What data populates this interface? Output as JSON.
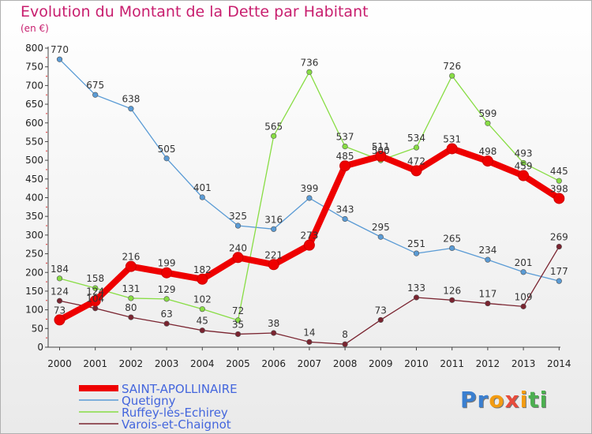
{
  "header": {
    "title": "Evolution du Montant de la Dette par Habitant",
    "unit": "(en €)"
  },
  "chart_data": {
    "type": "line",
    "title": "Evolution du Montant de la Dette par Habitant",
    "ylabel": "(en €)",
    "xlabel": "",
    "ylim": [
      0,
      800
    ],
    "yticks": [
      "0",
      "50",
      "100",
      "150",
      "200",
      "250",
      "300",
      "350",
      "400",
      "450",
      "500",
      "550",
      "600",
      "650",
      "700",
      "750",
      "800"
    ],
    "categories": [
      "2000",
      "2001",
      "2002",
      "2003",
      "2004",
      "2005",
      "2006",
      "2007",
      "2008",
      "2009",
      "2010",
      "2011",
      "2012",
      "2013",
      "2014"
    ],
    "series": [
      {
        "name": "Quetigny",
        "color": "#5a9bd5",
        "values": [
          770,
          675,
          638,
          505,
          401,
          325,
          316,
          399,
          343,
          295,
          251,
          265,
          234,
          201,
          177
        ]
      },
      {
        "name": "Ruffey-lès-Echirey",
        "color": "#88dd44",
        "values": [
          184,
          158,
          131,
          129,
          102,
          72,
          565,
          736,
          537,
          500,
          534,
          726,
          599,
          493,
          445
        ]
      },
      {
        "name": "Varois-et-Chaignot",
        "color": "#7a2430",
        "values": [
          124,
          104,
          80,
          63,
          45,
          35,
          38,
          14,
          8,
          73,
          133,
          126,
          117,
          109,
          269
        ]
      },
      {
        "name": "SAINT-APOLLINAIRE",
        "color": "#ee0000",
        "values": [
          73,
          124,
          216,
          199,
          182,
          240,
          221,
          273,
          485,
          511,
          472,
          531,
          498,
          459,
          398
        ]
      }
    ],
    "legend": [
      "SAINT-APOLLINAIRE",
      "Quetigny",
      "Ruffey-lès-Echirey",
      "Varois-et-Chaignot"
    ],
    "legend_position": "bottom-left",
    "grid": false
  },
  "logo": {
    "text": "Proxiti",
    "letters": [
      "P",
      "r",
      "o",
      "x",
      "i",
      "t",
      "i"
    ],
    "colors": [
      "#3a7fd0",
      "#3a7fd0",
      "#f39c12",
      "#e74c3c",
      "#f39c12",
      "#4caf50",
      "#4caf50"
    ]
  }
}
